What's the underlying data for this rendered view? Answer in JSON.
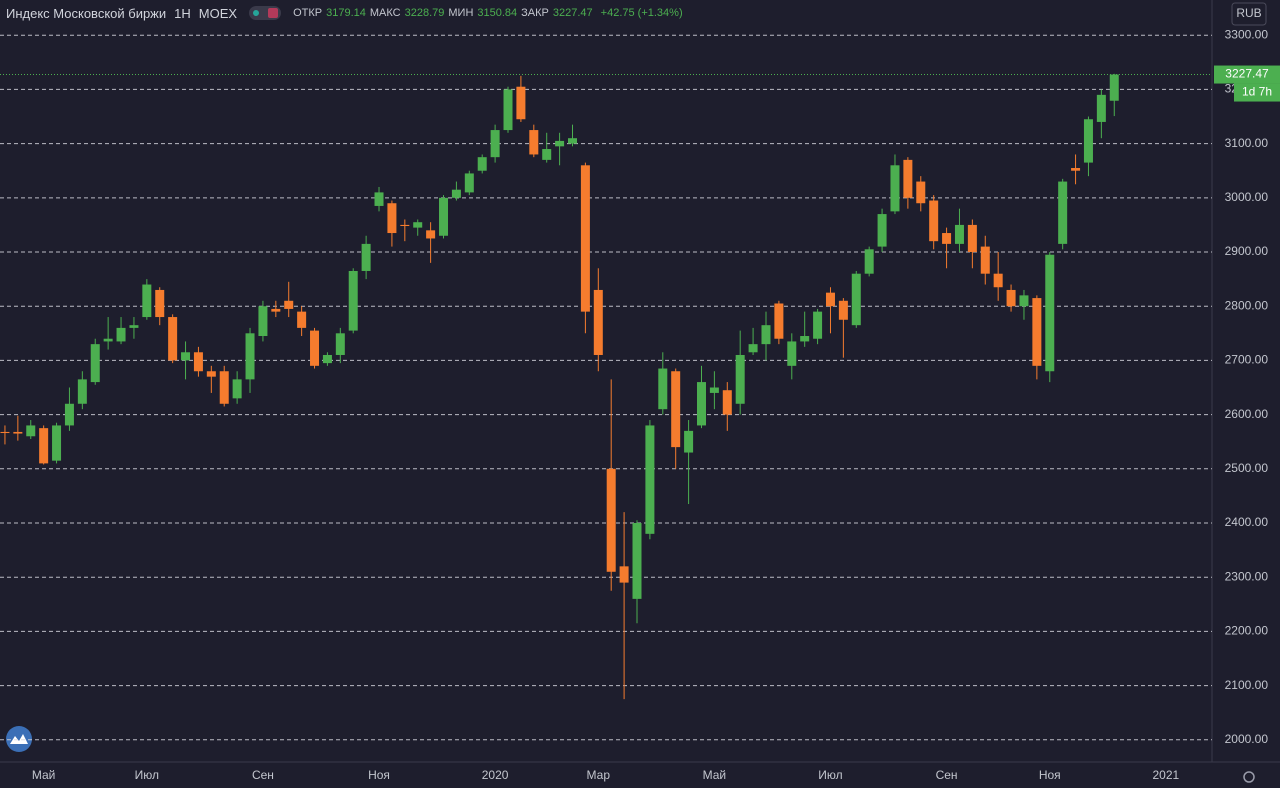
{
  "chart_data": {
    "type": "candlestick",
    "title": "Индекс Московской биржи",
    "interval": "1Н",
    "exchange": "MOEX",
    "ohlc_labels": [
      {
        "name": "ОТКР",
        "value": 3179.14
      },
      {
        "name": "МАКС",
        "value": 3228.79
      },
      {
        "name": "МИН",
        "value": 3150.84
      },
      {
        "name": "ЗАКР",
        "value": 3227.47
      }
    ],
    "change_label": "+42.75 (+1.34%)",
    "currency": "RUB",
    "countdown": "1d 7h",
    "up_color": "#4caf50",
    "down_color": "#f57c2e",
    "categories": [
      null,
      null,
      null,
      "Май",
      null,
      null,
      null,
      null,
      null,
      null,
      null,
      "Июл",
      null,
      null,
      null,
      null,
      null,
      null,
      null,
      null,
      "Сен",
      null,
      null,
      null,
      null,
      null,
      null,
      null,
      null,
      "Ноя",
      null,
      null,
      null,
      null,
      null,
      null,
      null,
      null,
      "2020",
      null,
      null,
      null,
      null,
      null,
      null,
      null,
      "Мар",
      null,
      null,
      null,
      null,
      null,
      null,
      null,
      null,
      "Май",
      null,
      null,
      null,
      null,
      null,
      null,
      null,
      null,
      "Июл",
      null,
      null,
      null,
      null,
      null,
      null,
      null,
      null,
      "Сен",
      null,
      null,
      null,
      null,
      null,
      null,
      null,
      "Ноя",
      null,
      null,
      null,
      null,
      null,
      null,
      null,
      null,
      "2021",
      null,
      null,
      null
    ],
    "open": [
      2568,
      2568,
      2560,
      2575,
      2515,
      2580,
      2620,
      2660,
      2735,
      2735,
      2760,
      2780,
      2830,
      2780,
      2700,
      2715,
      2680,
      2680,
      2630,
      2665,
      2745,
      2795,
      2810,
      2790,
      2755,
      2695,
      2710,
      2755,
      2865,
      2985,
      2990,
      2950,
      2945,
      2940,
      2930,
      3000,
      3010,
      3050,
      3075,
      3125,
      3205,
      3125,
      3070,
      3095,
      3100,
      3060,
      2830,
      2500,
      2320,
      2260,
      2380,
      2610,
      2680,
      2530,
      2580,
      2640,
      2645,
      2620,
      2715,
      2730,
      2805,
      2690,
      2735,
      2740,
      2825,
      2810,
      2765,
      2860,
      2910,
      2975,
      3070,
      3030,
      2995,
      2935,
      2915,
      2950,
      2910,
      2860,
      2830,
      2800,
      2815,
      2680,
      2915,
      3055,
      3065,
      3140,
      3179.14,
      null,
      null,
      null,
      null,
      null,
      null,
      null
    ],
    "high": [
      2580,
      2598,
      2590,
      2580,
      2585,
      2650,
      2680,
      2740,
      2780,
      2780,
      2780,
      2850,
      2835,
      2785,
      2735,
      2725,
      2690,
      2690,
      2680,
      2760,
      2810,
      2810,
      2845,
      2800,
      2760,
      2715,
      2760,
      2870,
      2930,
      3020,
      2995,
      2960,
      2960,
      2955,
      3005,
      3030,
      3050,
      3080,
      3135,
      3205,
      3225,
      3135,
      3120,
      3120,
      3135,
      3065,
      2870,
      2665,
      2420,
      2405,
      2590,
      2715,
      2685,
      2590,
      2690,
      2680,
      2660,
      2755,
      2760,
      2790,
      2810,
      2750,
      2790,
      2795,
      2835,
      2815,
      2865,
      2910,
      2980,
      3080,
      3075,
      3040,
      3005,
      2945,
      2980,
      2960,
      2930,
      2900,
      2840,
      2830,
      2820,
      2900,
      3035,
      3080,
      3150,
      3200,
      3228.79,
      null,
      null,
      null,
      null,
      null,
      null,
      null
    ],
    "low": [
      2545,
      2552,
      2555,
      2508,
      2510,
      2570,
      2610,
      2655,
      2720,
      2730,
      2740,
      2775,
      2765,
      2695,
      2665,
      2670,
      2640,
      2615,
      2620,
      2640,
      2735,
      2780,
      2780,
      2745,
      2685,
      2690,
      2695,
      2750,
      2850,
      2975,
      2910,
      2920,
      2930,
      2880,
      2925,
      2995,
      3005,
      3045,
      3065,
      3120,
      3140,
      3075,
      3065,
      3060,
      3095,
      2750,
      2680,
      2275,
      2075,
      2215,
      2370,
      2600,
      2500,
      2435,
      2575,
      2610,
      2570,
      2600,
      2710,
      2700,
      2730,
      2665,
      2725,
      2730,
      2750,
      2705,
      2760,
      2855,
      2900,
      2970,
      2980,
      2975,
      2905,
      2870,
      2900,
      2870,
      2840,
      2810,
      2790,
      2775,
      2665,
      2660,
      2905,
      3025,
      3040,
      3110,
      3150.84,
      null,
      null,
      null,
      null,
      null,
      null,
      null
    ],
    "close": [
      2566,
      2565,
      2580,
      2510,
      2580,
      2620,
      2665,
      2730,
      2740,
      2760,
      2765,
      2840,
      2780,
      2700,
      2715,
      2680,
      2670,
      2620,
      2665,
      2750,
      2800,
      2790,
      2795,
      2760,
      2690,
      2710,
      2750,
      2865,
      2915,
      3010,
      2935,
      2948,
      2955,
      2925,
      3000,
      3015,
      3045,
      3075,
      3125,
      3200,
      3145,
      3080,
      3090,
      3105,
      3110,
      2790,
      2710,
      2310,
      2290,
      2400,
      2580,
      2685,
      2540,
      2570,
      2660,
      2650,
      2600,
      2710,
      2730,
      2765,
      2740,
      2735,
      2745,
      2790,
      2800,
      2775,
      2860,
      2905,
      2970,
      3060,
      3000,
      2990,
      2920,
      2915,
      2950,
      2900,
      2860,
      2835,
      2800,
      2820,
      2690,
      2895,
      3030,
      3050,
      3145,
      3190,
      3227.47,
      null,
      null,
      null,
      null,
      null,
      null,
      null
    ],
    "ylim": [
      1959,
      3365
    ],
    "yticks": [
      {
        "value": 2000,
        "label": "2000.00"
      },
      {
        "value": 2100,
        "label": "2100.00"
      },
      {
        "value": 2200,
        "label": "2200.00"
      },
      {
        "value": 2300,
        "label": "2300.00"
      },
      {
        "value": 2400,
        "label": "2400.00"
      },
      {
        "value": 2500,
        "label": "2500.00"
      },
      {
        "value": 2600,
        "label": "2600.00"
      },
      {
        "value": 2700,
        "label": "2700.00"
      },
      {
        "value": 2800,
        "label": "2800.00"
      },
      {
        "value": 2900,
        "label": "2900.00"
      },
      {
        "value": 3000,
        "label": "3000.00"
      },
      {
        "value": 3100,
        "label": "3100.00"
      },
      {
        "value": 3200,
        "label": "3200.00"
      },
      {
        "value": 3300,
        "label": "3300.00"
      }
    ],
    "grid": true
  }
}
